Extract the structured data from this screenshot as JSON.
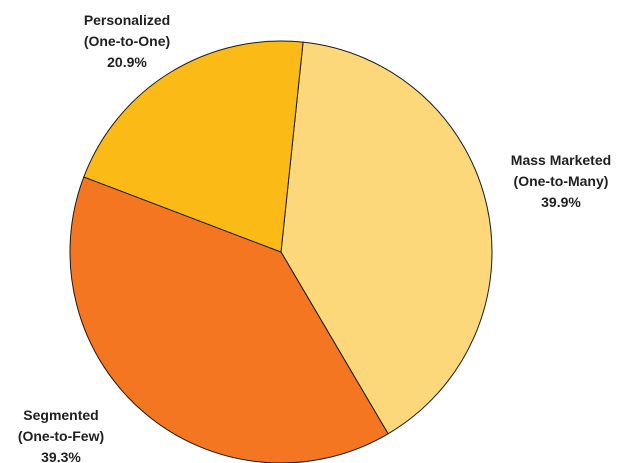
{
  "chart_data": {
    "type": "pie",
    "title": "",
    "slices": [
      {
        "label_line1": "Mass Marketed",
        "label_line2": "(One-to-Many)",
        "value_text": "39.9%",
        "value": 39.9,
        "color": "#FCD87A"
      },
      {
        "label_line1": "Segmented",
        "label_line2": "(One-to-Few)",
        "value_text": "39.3%",
        "value": 39.3,
        "color": "#F47621"
      },
      {
        "label_line1": "Personalized",
        "label_line2": "(One-to-One)",
        "value_text": "20.9%",
        "value": 20.9,
        "color": "#FBBA16"
      }
    ],
    "start_angle_deg": -84,
    "direction": "clockwise"
  }
}
